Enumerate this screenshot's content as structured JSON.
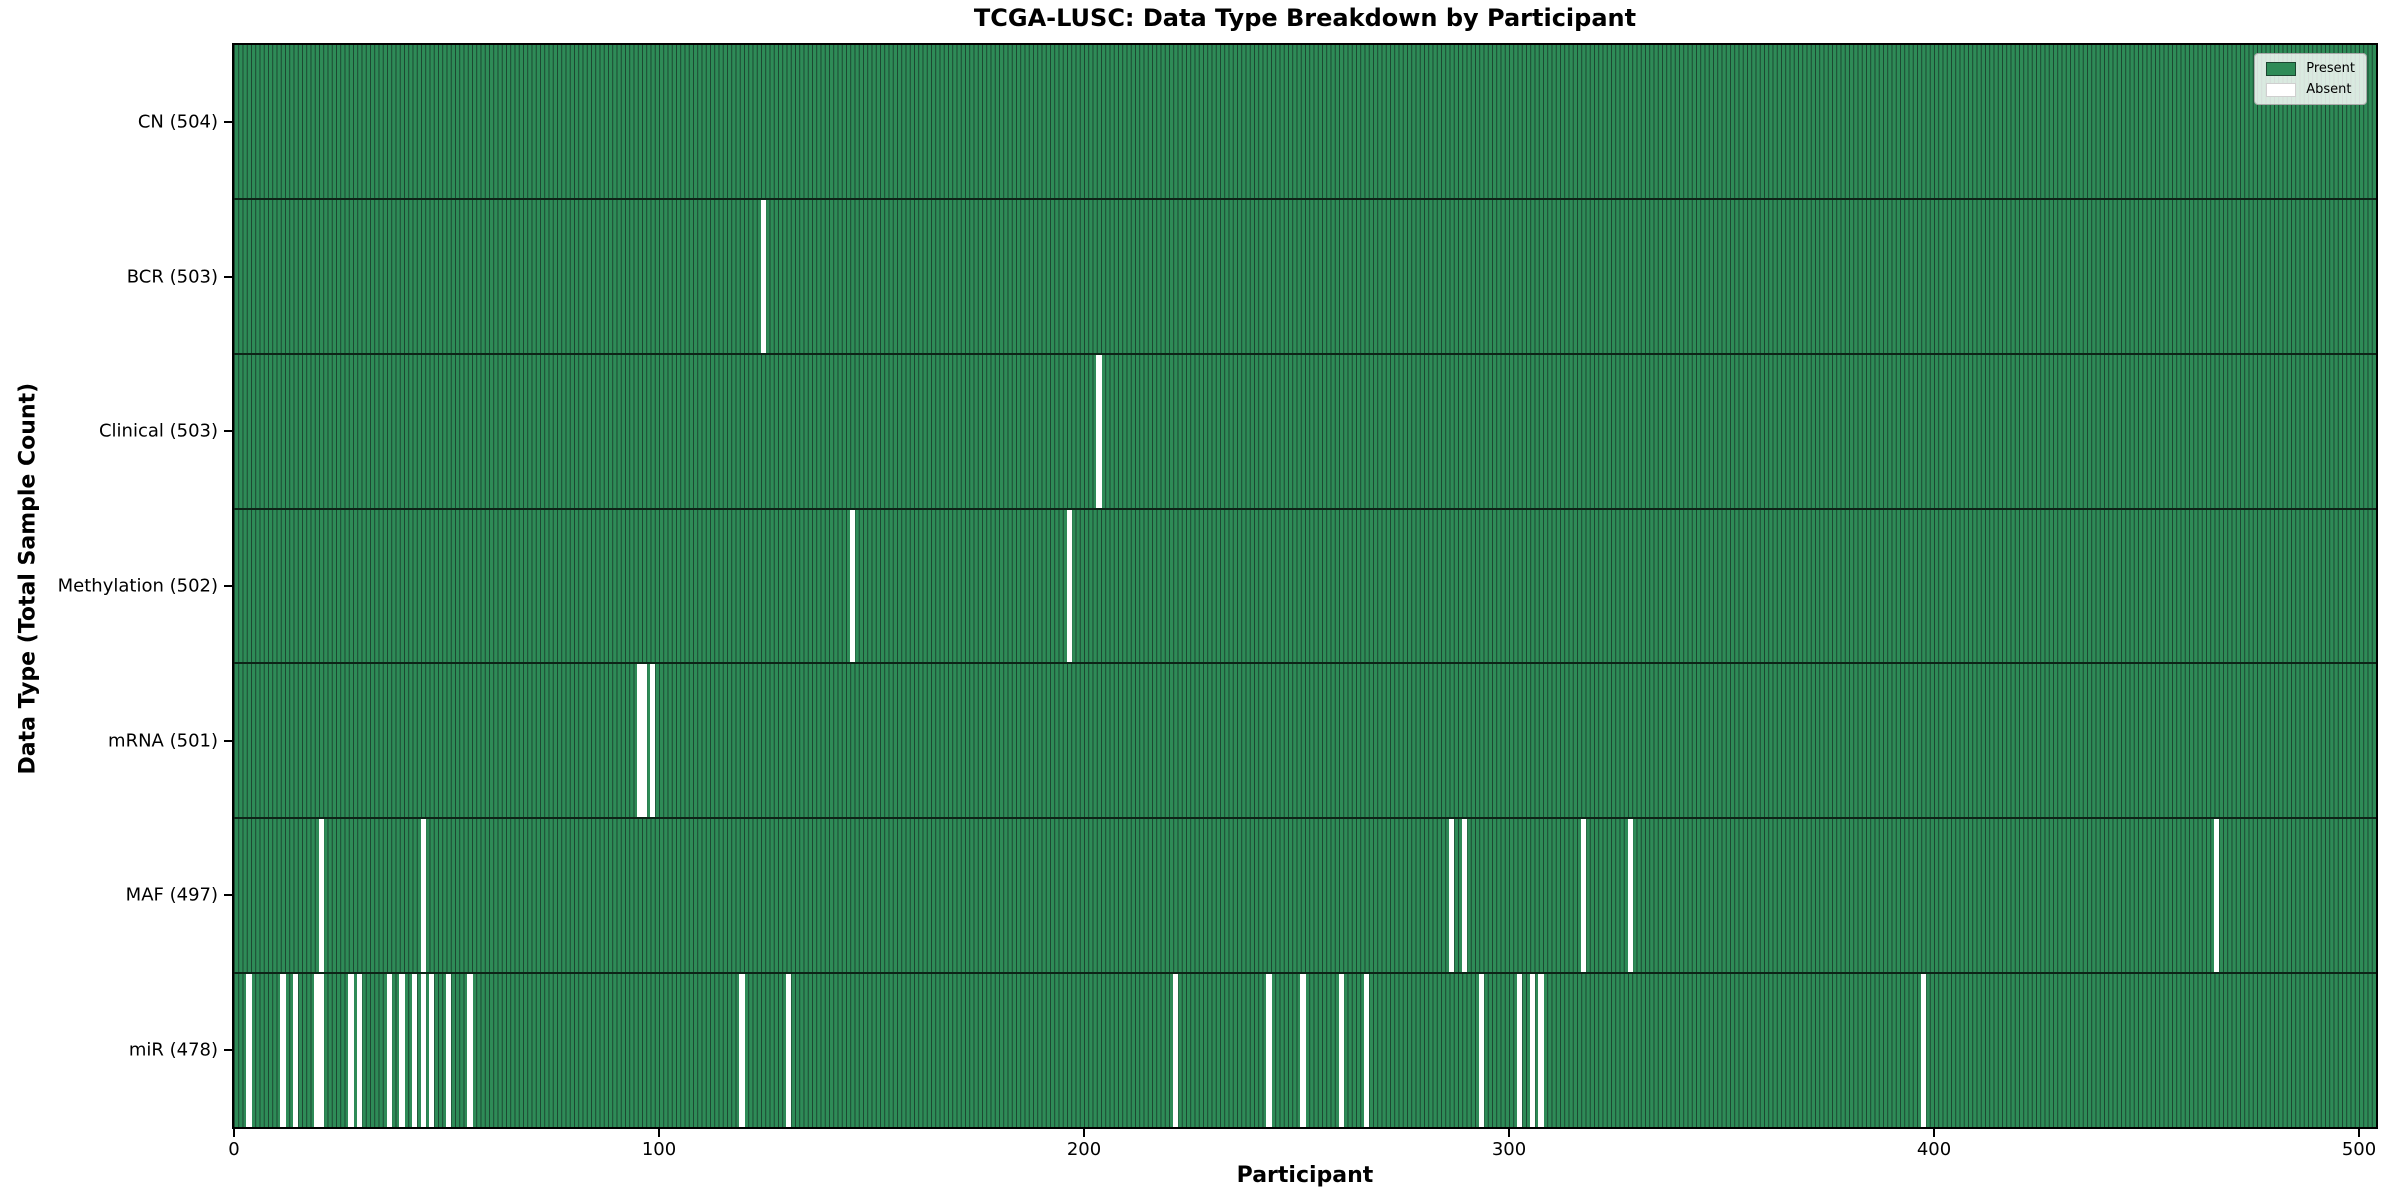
{
  "chart_data": {
    "type": "heatmap",
    "title": "TCGA-LUSC: Data Type Breakdown by Participant",
    "xlabel": "Participant",
    "ylabel": "Data Type (Total Sample Count)",
    "xlim": [
      0,
      504
    ],
    "x_ticks": [
      "0",
      "100",
      "200",
      "300",
      "400",
      "500"
    ],
    "x_tick_values": [
      0,
      100,
      200,
      300,
      400,
      500
    ],
    "grid": false,
    "legend_position": "upper right",
    "legend": {
      "items": [
        {
          "label": "Present",
          "color": "#2e8b57"
        },
        {
          "label": "Absent",
          "color": "#ffffff"
        }
      ]
    },
    "colors": {
      "present": "#2e8b57",
      "absent": "#ffffff",
      "cell_edge": "#1b4530",
      "row_separator": "#0d2417",
      "spine": "#000000"
    },
    "rows": [
      {
        "data_type": "CN",
        "label": "CN (504)",
        "total_samples": 504,
        "absent_participants": []
      },
      {
        "data_type": "BCR",
        "label": "BCR (503)",
        "total_samples": 503,
        "absent_participants": [
          124
        ]
      },
      {
        "data_type": "Clinical",
        "label": "Clinical (503)",
        "total_samples": 503,
        "absent_participants": [
          203
        ]
      },
      {
        "data_type": "Methylation",
        "label": "Methylation (502)",
        "total_samples": 502,
        "absent_participants": [
          145,
          196
        ]
      },
      {
        "data_type": "mRNA",
        "label": "mRNA (501)",
        "total_samples": 501,
        "absent_participants": [
          95,
          96,
          98
        ]
      },
      {
        "data_type": "MAF",
        "label": "MAF (497)",
        "total_samples": 497,
        "absent_participants": [
          20,
          44,
          286,
          289,
          317,
          328,
          466
        ]
      },
      {
        "data_type": "miR",
        "label": "miR (478)",
        "total_samples": 478,
        "absent_participants": [
          3,
          11,
          14,
          19,
          20,
          27,
          29,
          36,
          39,
          42,
          44,
          46,
          50,
          55,
          119,
          130,
          221,
          243,
          251,
          260,
          266,
          293,
          302,
          305,
          307,
          397
        ]
      }
    ]
  }
}
